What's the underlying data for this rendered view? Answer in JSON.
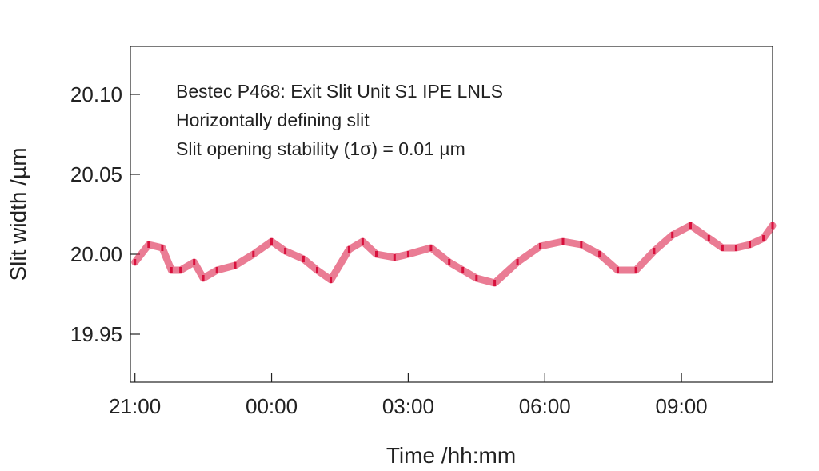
{
  "chart_data": {
    "type": "scatter",
    "xlabel": "Time /hh:mm",
    "ylabel": "Slit width /µm",
    "annotations": [
      "Bestec P468: Exit Slit Unit S1 IPE LNLS",
      "Horizontally defining slit",
      "Slit opening stability (1σ) = 0.01 µm"
    ],
    "x_ticks": [
      "21:00",
      "00:00",
      "03:00",
      "06:00",
      "09:00"
    ],
    "y_ticks": [
      "20.10",
      "20.05",
      "20.00",
      "19.95"
    ],
    "xlim_hours_after_2100": [
      -0.1,
      14.0
    ],
    "ylim": [
      19.92,
      20.13
    ],
    "series": [
      {
        "color": "#d8103c",
        "x_hours_after_2100": [
          0.0,
          0.3,
          0.6,
          0.8,
          1.0,
          1.3,
          1.5,
          1.8,
          2.2,
          2.6,
          3.0,
          3.3,
          3.7,
          4.0,
          4.3,
          4.7,
          5.0,
          5.3,
          5.7,
          6.0,
          6.5,
          6.9,
          7.2,
          7.5,
          7.9,
          8.4,
          8.9,
          9.4,
          9.8,
          10.2,
          10.6,
          11.0,
          11.4,
          11.8,
          12.2,
          12.6,
          12.9,
          13.2,
          13.5,
          13.8,
          14.0
        ],
        "y": [
          19.995,
          20.006,
          20.004,
          19.99,
          19.99,
          19.995,
          19.985,
          19.99,
          19.993,
          20.0,
          20.008,
          20.002,
          19.997,
          19.99,
          19.984,
          20.003,
          20.008,
          20.0,
          19.998,
          20.0,
          20.004,
          19.995,
          19.99,
          19.985,
          19.982,
          19.995,
          20.005,
          20.008,
          20.006,
          20.0,
          19.99,
          19.99,
          20.002,
          20.012,
          20.018,
          20.01,
          20.004,
          20.004,
          20.006,
          20.01,
          20.018
        ]
      }
    ],
    "grid": false
  }
}
